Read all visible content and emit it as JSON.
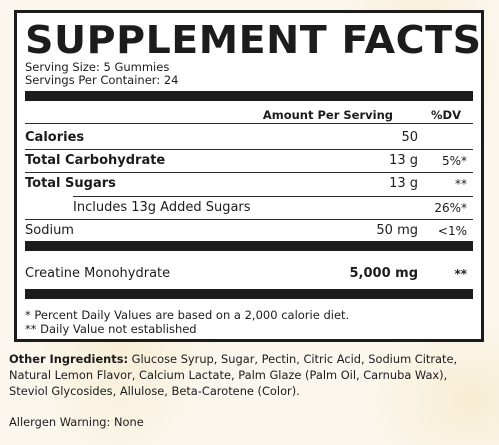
{
  "label": {
    "title": "SUPPLEMENT FACTS",
    "serving_size": "Serving Size: 5 Gummies",
    "servings_per_container": "Servings Per Container: 24",
    "header_amount": "Amount Per Serving",
    "header_dv": "%DV",
    "rows": [
      {
        "name": "Calories",
        "amount": "50",
        "dv": ""
      },
      {
        "name": "Total Carbohydrate",
        "amount": "13 g",
        "dv": "5%*"
      },
      {
        "name": "Total Sugars",
        "amount": "13 g",
        "dv": "**"
      },
      {
        "name": "Includes 13g Added Sugars",
        "amount": "",
        "dv": "26%*"
      },
      {
        "name": "Sodium",
        "amount": "50 mg",
        "dv": "<1%"
      },
      {
        "name": "Creatine Monohydrate",
        "amount": "5,000 mg",
        "dv": "**"
      }
    ],
    "footnote_1": "* Percent Daily Values are based on a 2,000 calorie diet.",
    "footnote_2": "** Daily Value not established"
  },
  "other_ingredients": {
    "label": "Other Ingredients:",
    "text": " Glucose Syrup, Sugar, Pectin, Citric Acid, Sodium Citrate, Natural Lemon Flavor, Calcium Lactate, Palm Glaze (Palm Oil, Carnuba Wax), Steviol Glycosides, Allulose, Beta-Carotene (Color)."
  },
  "allergen_warning": "Allergen Warning: None"
}
